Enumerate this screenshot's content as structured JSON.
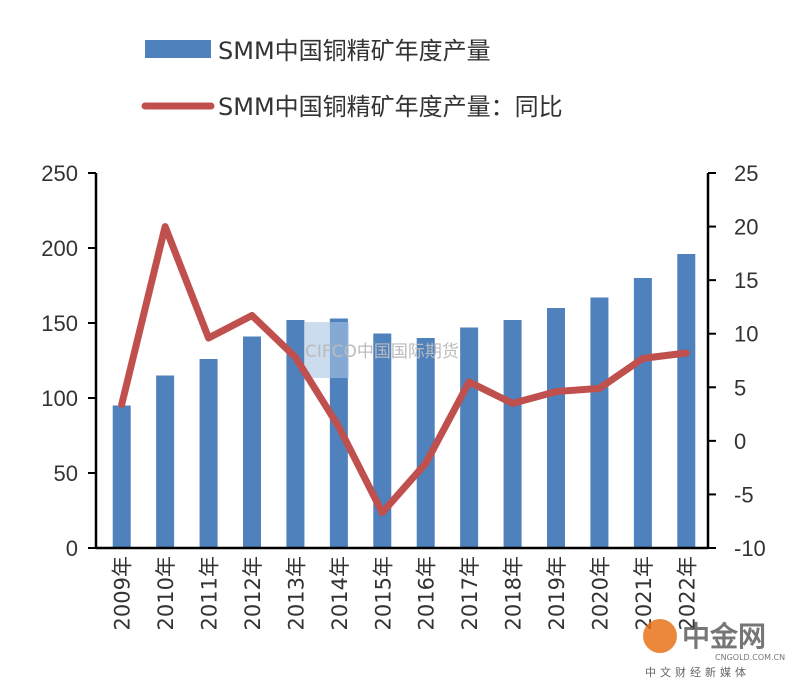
{
  "chart_data": {
    "type": "bar+line",
    "title": "",
    "categories": [
      "2009年",
      "2010年",
      "2011年",
      "2012年",
      "2013年",
      "2014年",
      "2015年",
      "2016年",
      "2017年",
      "2018年",
      "2019年",
      "2020年",
      "2021年",
      "2022年"
    ],
    "series": [
      {
        "name": "SMM中国铜精矿年度产量",
        "type": "bar",
        "axis": "left",
        "color": "#4f81bd",
        "values": [
          95,
          115,
          126,
          141,
          152,
          153,
          143,
          140,
          147,
          152,
          160,
          167,
          180,
          196
        ]
      },
      {
        "name": "SMM中国铜精矿年度产量：同比",
        "type": "line",
        "axis": "right",
        "color": "#c0504d",
        "values": [
          3.4,
          20.0,
          9.6,
          11.7,
          7.8,
          1.3,
          -6.7,
          -2.1,
          5.5,
          3.5,
          4.6,
          4.9,
          7.7,
          8.2
        ]
      }
    ],
    "left_axis": {
      "ylim": [
        0,
        250
      ],
      "ticks": [
        "0",
        "50",
        "100",
        "150",
        "200",
        "250"
      ]
    },
    "right_axis": {
      "ylim": [
        -10,
        25
      ],
      "ticks": [
        "-10",
        "-5",
        "0",
        "5",
        "10",
        "15",
        "20",
        "25"
      ]
    },
    "legend": "top",
    "grid": false
  },
  "watermarks": {
    "center": "CIFCO中国国际期货",
    "logo_main": "中金网",
    "logo_url": "CNGOLD.COM.CN",
    "logo_sub": "中文财经新媒体"
  }
}
